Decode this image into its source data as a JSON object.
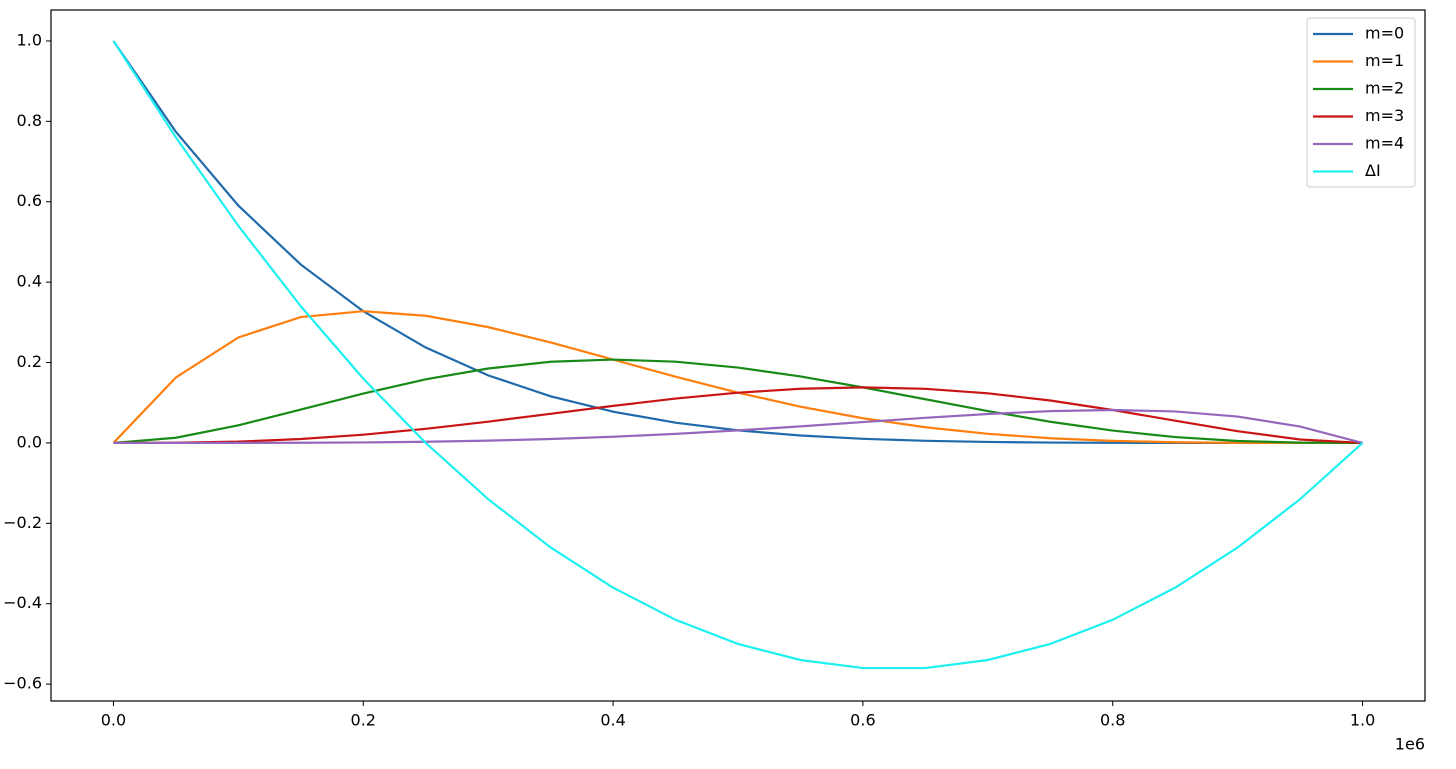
{
  "chart_data": {
    "type": "line",
    "x": [
      0,
      0.05,
      0.1,
      0.15,
      0.2,
      0.25,
      0.3,
      0.35,
      0.4,
      0.45,
      0.5,
      0.55,
      0.6,
      0.65,
      0.7,
      0.75,
      0.8,
      0.85,
      0.9,
      0.95,
      1
    ],
    "x_offset_label": "1e6",
    "series": [
      {
        "name": "m=0",
        "color": "#1f6aab",
        "values": [
          1,
          0.7738,
          0.5905,
          0.4437,
          0.3277,
          0.2373,
          0.1681,
          0.116,
          0.0778,
          0.0503,
          0.03125,
          0.01845,
          0.01024,
          0.00525,
          0.00243,
          0.00098,
          0.00032,
          8e-05,
          1e-05,
          0,
          0
        ]
      },
      {
        "name": "m=1",
        "color": "#ff7f0e",
        "values": [
          0,
          0.1629,
          0.2624,
          0.3132,
          0.3277,
          0.3164,
          0.2881,
          0.2499,
          0.2074,
          0.1647,
          0.125,
          0.0902,
          0.06144,
          0.039,
          0.02268,
          0.01172,
          0.00512,
          0.00172,
          0.00036,
          2e-05,
          0
        ]
      },
      {
        "name": "m=2",
        "color": "#178a17",
        "values": [
          0,
          0.01286,
          0.04374,
          0.0829,
          0.1229,
          0.1582,
          0.1852,
          0.2019,
          0.2074,
          0.2021,
          0.1875,
          0.1654,
          0.1382,
          0.1087,
          0.07938,
          0.05273,
          0.03072,
          0.01463,
          0.00486,
          0.00068,
          0
        ]
      },
      {
        "name": "m=3",
        "color": "#c81414",
        "values": [
          0,
          0.00045,
          0.00324,
          0.00975,
          0.02048,
          0.03516,
          0.05292,
          0.07246,
          0.09216,
          0.1103,
          0.125,
          0.1348,
          0.1382,
          0.1346,
          0.1235,
          0.1055,
          0.08192,
          0.05527,
          0.02916,
          0.00857,
          0
        ]
      },
      {
        "name": "m=4",
        "color": "#9467bd",
        "values": [
          0,
          6e-06,
          9e-05,
          0.00043,
          0.00128,
          0.00293,
          0.00567,
          0.00975,
          0.01536,
          0.02255,
          0.03125,
          0.04118,
          0.05184,
          0.06248,
          0.07203,
          0.0791,
          0.08192,
          0.0783,
          0.06561,
          0.04073,
          0
        ]
      },
      {
        "name": "ΔI",
        "color": "#1ef0f0",
        "values": [
          1,
          0.76,
          0.54,
          0.34,
          0.16,
          0,
          -0.14,
          -0.26,
          -0.36,
          -0.44,
          -0.5,
          -0.54,
          -0.56,
          -0.56,
          -0.54,
          -0.5,
          -0.44,
          -0.36,
          -0.26,
          -0.14,
          0
        ]
      }
    ],
    "xlim": [
      -0.05,
      1.05
    ],
    "xticks": [
      {
        "value": 0,
        "label": "0.0"
      },
      0.2,
      0.4,
      0.6,
      0.8,
      {
        "value": 1,
        "label": "1.0"
      }
    ],
    "ylim": [
      -0.642,
      1.077
    ],
    "yticks": [
      {
        "value": -0.6,
        "label": "−0.6"
      },
      {
        "value": -0.4,
        "label": "−0.4"
      },
      {
        "value": -0.2,
        "label": "−0.2"
      },
      {
        "value": 0,
        "label": "0.0"
      },
      0.2,
      0.4,
      0.6,
      0.8,
      {
        "value": 1,
        "label": "1.0"
      }
    ],
    "legend": "upper right",
    "grid": false
  }
}
